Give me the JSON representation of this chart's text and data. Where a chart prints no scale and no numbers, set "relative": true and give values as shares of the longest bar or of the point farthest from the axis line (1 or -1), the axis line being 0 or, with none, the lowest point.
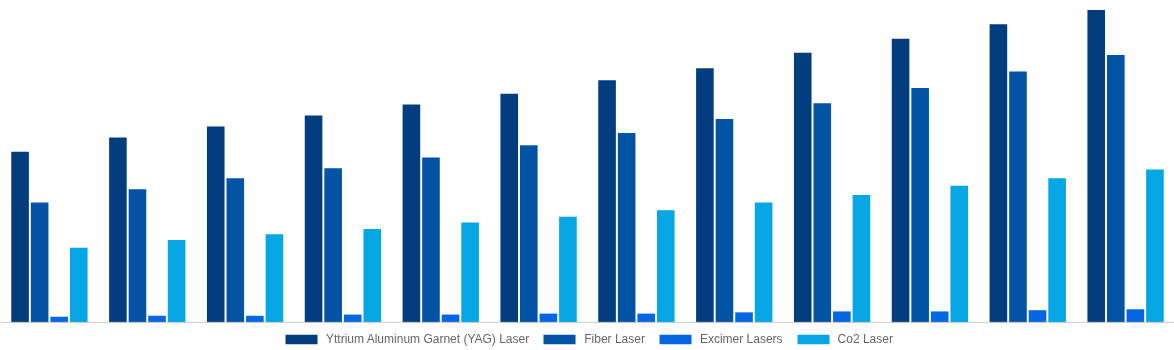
{
  "chart_data": {
    "type": "bar",
    "relative": true,
    "legend": "bottom",
    "grid": false,
    "categories": [
      null,
      null,
      null,
      null,
      null,
      null,
      null,
      null,
      null,
      null,
      null,
      null
    ],
    "series": [
      {
        "name": "Yttrium Aluminum Garnet (YAG) Laser",
        "color": "#023e7d",
        "values": [
          0.546,
          0.592,
          0.627,
          0.662,
          0.697,
          0.732,
          0.775,
          0.813,
          0.863,
          0.908,
          0.954,
          1
        ]
      },
      {
        "name": "Fiber Laser",
        "color": "#0353a4",
        "values": [
          0.384,
          0.426,
          0.461,
          0.493,
          0.528,
          0.567,
          0.606,
          0.651,
          0.701,
          0.75,
          0.803,
          0.856
        ]
      },
      {
        "name": "Excimer Lasers",
        "color": "#0466e0",
        "values": [
          0.018,
          0.021,
          0.021,
          0.025,
          0.025,
          0.028,
          0.028,
          0.032,
          0.035,
          0.035,
          0.039,
          0.042
        ]
      },
      {
        "name": "Co2 Laser",
        "color": "#04a6e4",
        "values": [
          0.239,
          0.264,
          0.282,
          0.299,
          0.32,
          0.338,
          0.359,
          0.384,
          0.408,
          0.437,
          0.461,
          0.489
        ]
      }
    ]
  }
}
